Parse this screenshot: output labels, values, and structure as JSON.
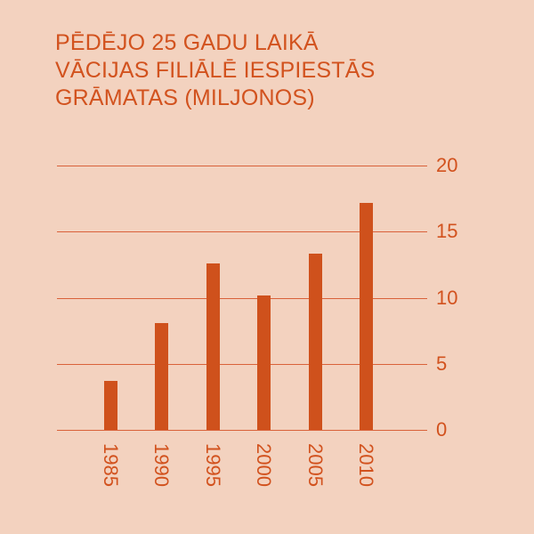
{
  "title_lines": [
    "PĒDĒJO 25 GADU LAIKĀ",
    "VĀCIJAS FILIĀLĒ IESPIESTĀS",
    "GRĀMATAS (MILJONOS)"
  ],
  "colors": {
    "background": "#f3d2bf",
    "bar": "#cf511c",
    "text": "#d2521e",
    "grid": "#d9623a"
  },
  "chart_data": {
    "type": "bar",
    "title": "PĒDĒJO 25 GADU LAIKĀ VĀCIJAS FILIĀLĒ IESPIESTĀS GRĀMATAS (MILJONOS)",
    "categories": [
      "1985",
      "1990",
      "1995",
      "2000",
      "2005",
      "2010"
    ],
    "values": [
      3.7,
      8.1,
      12.6,
      10.2,
      13.3,
      17.2
    ],
    "xlabel": "",
    "ylabel": "",
    "ylim": [
      0,
      20
    ],
    "yticks": [
      "0",
      "5",
      "10",
      "15",
      "20"
    ],
    "grid": true,
    "y_axis_position": "right",
    "x_tick_rotation": 90,
    "legend": null
  }
}
